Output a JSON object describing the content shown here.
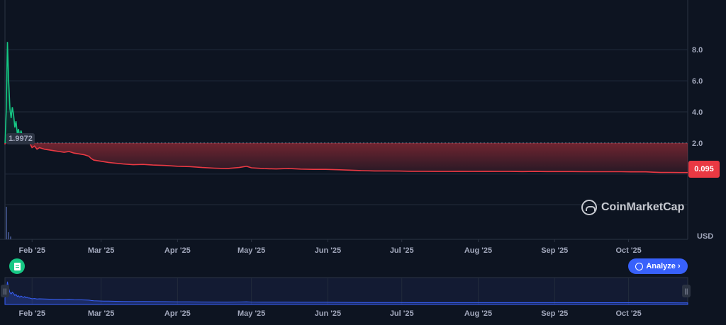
{
  "chart_data": {
    "type": "area",
    "title": "",
    "xlabel": "",
    "ylabel": "USD",
    "y_ticks": [
      "8.0",
      "6.0",
      "4.0",
      "2.0"
    ],
    "ylim": [
      -4.2,
      11.2
    ],
    "x_labels": [
      "Feb '25",
      "Mar '25",
      "Apr '25",
      "May '25",
      "Jun '25",
      "Jul '25",
      "Aug '25",
      "Sep '25",
      "Oct '25"
    ],
    "x_label_days": [
      31,
      59,
      90,
      120,
      151,
      181,
      212,
      243,
      273
    ],
    "xlim_days": [
      20,
      297
    ],
    "baseline": 1.9972,
    "baseline_label": "1.9972",
    "last_price": 0.095,
    "last_price_label": "0.095",
    "up_color": "#16c784",
    "down_color": "#ea3943",
    "grid": true,
    "series": [
      {
        "points": [
          [
            20,
            1.9
          ],
          [
            20.5,
            4.0
          ],
          [
            21,
            8.5
          ],
          [
            21.5,
            6.0
          ],
          [
            22,
            4.2
          ],
          [
            22.5,
            3.6
          ],
          [
            23,
            4.3
          ],
          [
            23.5,
            3.8
          ],
          [
            24,
            3.0
          ],
          [
            24.5,
            3.4
          ],
          [
            25,
            2.6
          ],
          [
            25.5,
            2.9
          ],
          [
            26,
            2.3
          ],
          [
            26.5,
            2.8
          ],
          [
            27,
            2.5
          ],
          [
            27.5,
            2.2
          ],
          [
            28,
            2.6
          ],
          [
            28.5,
            2.1
          ],
          [
            29,
            2.3
          ],
          [
            29.5,
            2.0
          ],
          [
            30,
            2.0
          ],
          [
            31,
            1.7
          ],
          [
            32,
            1.8
          ],
          [
            33,
            1.6
          ],
          [
            34,
            1.7
          ],
          [
            36,
            1.6
          ],
          [
            38,
            1.55
          ],
          [
            40,
            1.5
          ],
          [
            42,
            1.45
          ],
          [
            44,
            1.4
          ],
          [
            46,
            1.45
          ],
          [
            48,
            1.35
          ],
          [
            50,
            1.3
          ],
          [
            52,
            1.25
          ],
          [
            54,
            1.15
          ],
          [
            55,
            1.0
          ],
          [
            56,
            0.9
          ],
          [
            58,
            0.85
          ],
          [
            60,
            0.8
          ],
          [
            62,
            0.75
          ],
          [
            65,
            0.7
          ],
          [
            68,
            0.65
          ],
          [
            72,
            0.6
          ],
          [
            76,
            0.62
          ],
          [
            80,
            0.58
          ],
          [
            85,
            0.55
          ],
          [
            90,
            0.5
          ],
          [
            95,
            0.48
          ],
          [
            100,
            0.42
          ],
          [
            105,
            0.38
          ],
          [
            110,
            0.35
          ],
          [
            115,
            0.42
          ],
          [
            118,
            0.5
          ],
          [
            120,
            0.4
          ],
          [
            125,
            0.35
          ],
          [
            130,
            0.33
          ],
          [
            135,
            0.36
          ],
          [
            140,
            0.32
          ],
          [
            145,
            0.3
          ],
          [
            150,
            0.3
          ],
          [
            155,
            0.28
          ],
          [
            160,
            0.25
          ],
          [
            165,
            0.22
          ],
          [
            170,
            0.2
          ],
          [
            175,
            0.2
          ],
          [
            180,
            0.19
          ],
          [
            185,
            0.18
          ],
          [
            190,
            0.18
          ],
          [
            195,
            0.17
          ],
          [
            200,
            0.17
          ],
          [
            205,
            0.18
          ],
          [
            210,
            0.17
          ],
          [
            215,
            0.18
          ],
          [
            220,
            0.17
          ],
          [
            225,
            0.17
          ],
          [
            230,
            0.16
          ],
          [
            235,
            0.17
          ],
          [
            240,
            0.16
          ],
          [
            245,
            0.16
          ],
          [
            250,
            0.16
          ],
          [
            255,
            0.15
          ],
          [
            260,
            0.15
          ],
          [
            265,
            0.15
          ],
          [
            270,
            0.15
          ],
          [
            275,
            0.14
          ],
          [
            280,
            0.14
          ],
          [
            283,
            0.12
          ],
          [
            286,
            0.1
          ],
          [
            290,
            0.1
          ],
          [
            294,
            0.095
          ],
          [
            297,
            0.095
          ]
        ]
      }
    ]
  },
  "watermark": "CoinMarketCap",
  "currency_label": "USD",
  "analyze_label": "Analyze ›",
  "nav_labels": [
    "Feb '25",
    "Mar '25",
    "Apr '25",
    "May '25",
    "Jun '25",
    "Jul '25",
    "Aug '25",
    "Sep '25",
    "Oct '25"
  ],
  "icons": {
    "doc_button": "document-icon",
    "analyze": "analyze-icon",
    "watermark": "coinmarketcap-logo-icon",
    "handles": "drag-handle-icon"
  }
}
